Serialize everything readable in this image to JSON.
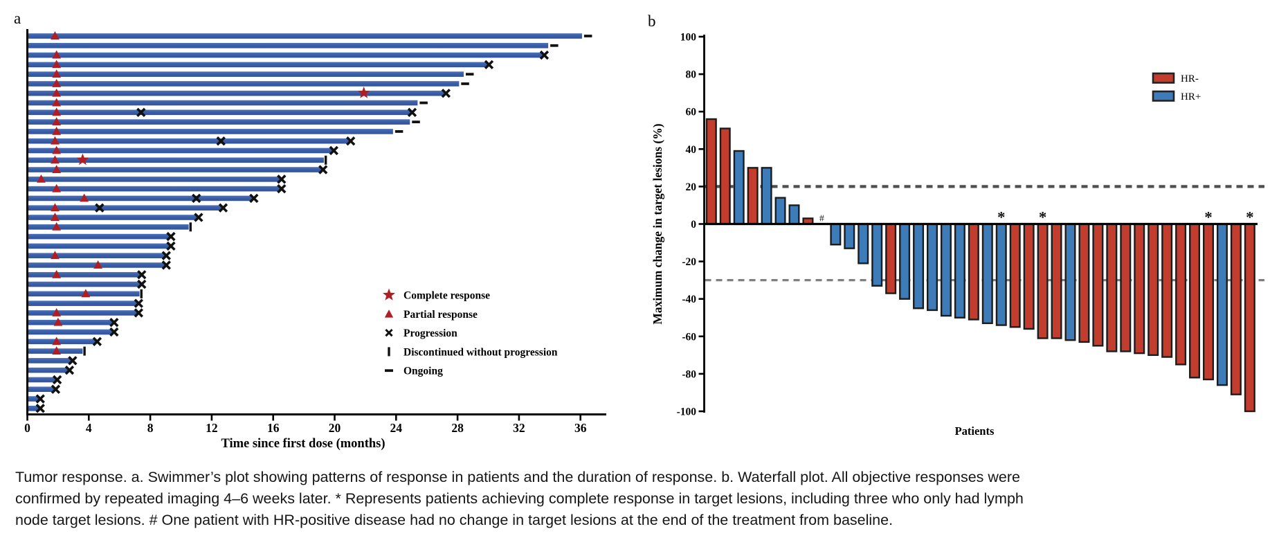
{
  "figure_label_a": "a",
  "figure_label_b": "b",
  "colors": {
    "swimmer_bar_blue": "#3A5FA8",
    "swimmer_bar_blue_light": "#4C72B8",
    "swimmer_bar_blue_dark": "#31529A",
    "marker_red": "#B01E23",
    "marker_black": "#111111",
    "hr_neg_red": "#C33D2E",
    "hr_pos_blue": "#3E7CB9",
    "bar_outline": "#1C1C1C",
    "ref_line_20": "#4F4F4F",
    "ref_line_neg30": "#7F7F7F",
    "axis_black": "#000000"
  },
  "chart_data": [
    {
      "type": "bar",
      "variant": "swimmer",
      "panel": "a",
      "xlabel": "Time since first dose (months)",
      "x_ticks": [
        0,
        4,
        8,
        12,
        16,
        20,
        24,
        28,
        32,
        36
      ],
      "xlim": [
        0,
        37.5
      ],
      "grid": false,
      "legend_position": "right-middle",
      "legend": [
        {
          "symbol": "star",
          "label": "Complete response"
        },
        {
          "symbol": "triangle",
          "label": "Partial response"
        },
        {
          "symbol": "x",
          "label": "Progression"
        },
        {
          "symbol": "bar",
          "label": "Discontinued without progression"
        },
        {
          "symbol": "dash",
          "label": "Ongoing"
        }
      ],
      "patients": [
        {
          "duration": 36.1,
          "end_marker": "ongoing",
          "partial_response_at": 1.8
        },
        {
          "duration": 33.9,
          "end_marker": "ongoing"
        },
        {
          "duration": 33.6,
          "end_marker": "progression",
          "partial_response_at": 1.9
        },
        {
          "duration": 30.0,
          "end_marker": "progression",
          "partial_response_at": 1.9
        },
        {
          "duration": 28.4,
          "end_marker": "ongoing",
          "partial_response_at": 1.9
        },
        {
          "duration": 28.1,
          "end_marker": "ongoing",
          "partial_response_at": 1.9
        },
        {
          "duration": 27.2,
          "end_marker": "progression",
          "partial_response_at": 1.9,
          "complete_response_at": 21.9
        },
        {
          "duration": 25.4,
          "end_marker": "ongoing",
          "partial_response_at": 1.9
        },
        {
          "duration": 25.0,
          "end_marker": "progression",
          "partial_response_at": 1.9,
          "progression_at": [
            7.4
          ]
        },
        {
          "duration": 24.9,
          "end_marker": "ongoing",
          "partial_response_at": 1.9
        },
        {
          "duration": 23.8,
          "end_marker": "ongoing",
          "partial_response_at": 1.9
        },
        {
          "duration": 21.0,
          "end_marker": "progression",
          "partial_response_at": 1.8,
          "progression_at": [
            12.6
          ]
        },
        {
          "duration": 19.9,
          "end_marker": "progression",
          "partial_response_at": 1.9
        },
        {
          "duration": 19.3,
          "end_marker": "discontinued",
          "partial_response_at": 1.8,
          "complete_response_at": 3.6
        },
        {
          "duration": 19.2,
          "end_marker": "progression",
          "partial_response_at": 1.9
        },
        {
          "duration": 16.5,
          "end_marker": "progression",
          "partial_response_at": 0.9
        },
        {
          "duration": 16.5,
          "end_marker": "progression",
          "partial_response_at": 1.9
        },
        {
          "duration": 14.7,
          "end_marker": "progression",
          "partial_response_at": 3.7,
          "progression_at": [
            11.0
          ]
        },
        {
          "duration": 12.7,
          "end_marker": "progression",
          "partial_response_at": 1.8,
          "progression_at": [
            4.7
          ]
        },
        {
          "duration": 11.1,
          "end_marker": "progression",
          "partial_response_at": 1.8
        },
        {
          "duration": 10.5,
          "end_marker": "discontinued",
          "partial_response_at": 1.9
        },
        {
          "duration": 9.3,
          "end_marker": "progression"
        },
        {
          "duration": 9.3,
          "end_marker": "progression"
        },
        {
          "duration": 9.0,
          "end_marker": "progression",
          "partial_response_at": 1.8
        },
        {
          "duration": 9.0,
          "end_marker": "progression",
          "partial_response_at": 4.6
        },
        {
          "duration": 7.4,
          "end_marker": "progression",
          "partial_response_at": 1.9
        },
        {
          "duration": 7.4,
          "end_marker": "progression"
        },
        {
          "duration": 7.3,
          "end_marker": "discontinued",
          "partial_response_at": 3.8
        },
        {
          "duration": 7.2,
          "end_marker": "progression"
        },
        {
          "duration": 7.2,
          "end_marker": "progression",
          "partial_response_at": 1.9
        },
        {
          "duration": 5.6,
          "end_marker": "progression",
          "partial_response_at": 2.0
        },
        {
          "duration": 5.6,
          "end_marker": "progression"
        },
        {
          "duration": 4.5,
          "end_marker": "progression",
          "partial_response_at": 1.9
        },
        {
          "duration": 3.6,
          "end_marker": "discontinued",
          "partial_response_at": 1.9
        },
        {
          "duration": 2.9,
          "end_marker": "progression"
        },
        {
          "duration": 2.7,
          "end_marker": "progression"
        },
        {
          "duration": 1.9,
          "end_marker": "progression"
        },
        {
          "duration": 1.8,
          "end_marker": "progression"
        },
        {
          "duration": 0.8,
          "end_marker": "progression"
        },
        {
          "duration": 0.8,
          "end_marker": "progression"
        }
      ]
    },
    {
      "type": "bar",
      "variant": "waterfall",
      "panel": "b",
      "ylabel": "Maximum change in target lesions (%)",
      "xlabel": "Patients",
      "y_ticks": [
        100,
        80,
        60,
        40,
        20,
        0,
        -20,
        -40,
        -60,
        -80,
        -100
      ],
      "ylim": [
        -100,
        100
      ],
      "reference_lines": [
        20,
        -30
      ],
      "grid": false,
      "legend_position": "top-right",
      "legend": [
        {
          "group": "HR-",
          "label": "HR-"
        },
        {
          "group": "HR+",
          "label": "HR+"
        }
      ],
      "bars": [
        {
          "value": 56,
          "group": "HR-"
        },
        {
          "value": 51,
          "group": "HR-"
        },
        {
          "value": 39,
          "group": "HR+"
        },
        {
          "value": 30,
          "group": "HR-"
        },
        {
          "value": 30,
          "group": "HR+"
        },
        {
          "value": 14,
          "group": "HR+"
        },
        {
          "value": 10,
          "group": "HR+"
        },
        {
          "value": 3,
          "group": "HR-"
        },
        {
          "value": 0,
          "group": "HR+",
          "flag": "#"
        },
        {
          "value": -11,
          "group": "HR+"
        },
        {
          "value": -13,
          "group": "HR+"
        },
        {
          "value": -21,
          "group": "HR+"
        },
        {
          "value": -33,
          "group": "HR+"
        },
        {
          "value": -37,
          "group": "HR-"
        },
        {
          "value": -40,
          "group": "HR+"
        },
        {
          "value": -45,
          "group": "HR+"
        },
        {
          "value": -46,
          "group": "HR+"
        },
        {
          "value": -49,
          "group": "HR+"
        },
        {
          "value": -50,
          "group": "HR+"
        },
        {
          "value": -51,
          "group": "HR-"
        },
        {
          "value": -53,
          "group": "HR+"
        },
        {
          "value": -54,
          "group": "HR+",
          "flag": "*"
        },
        {
          "value": -55,
          "group": "HR-"
        },
        {
          "value": -56,
          "group": "HR-"
        },
        {
          "value": -61,
          "group": "HR-",
          "flag": "*"
        },
        {
          "value": -61,
          "group": "HR-"
        },
        {
          "value": -62,
          "group": "HR+"
        },
        {
          "value": -63,
          "group": "HR-"
        },
        {
          "value": -65,
          "group": "HR-"
        },
        {
          "value": -68,
          "group": "HR-"
        },
        {
          "value": -68,
          "group": "HR-"
        },
        {
          "value": -69,
          "group": "HR-"
        },
        {
          "value": -70,
          "group": "HR-"
        },
        {
          "value": -71,
          "group": "HR-"
        },
        {
          "value": -75,
          "group": "HR-"
        },
        {
          "value": -82,
          "group": "HR-"
        },
        {
          "value": -83,
          "group": "HR-",
          "flag": "*"
        },
        {
          "value": -86,
          "group": "HR+"
        },
        {
          "value": -91,
          "group": "HR-"
        },
        {
          "value": -100,
          "group": "HR-",
          "flag": "*"
        }
      ]
    }
  ],
  "caption": {
    "lines": [
      "Tumor response. a. Swimmer’s plot showing patterns of response in patients and the duration of response. b. Waterfall plot. All objective responses were",
      "confirmed by repeated imaging 4–6 weeks later. * Represents patients achieving complete response in target lesions, including three who only had lymph",
      "node target lesions. # One patient with HR-positive disease had no change in target lesions at the end of the treatment from baseline."
    ]
  }
}
